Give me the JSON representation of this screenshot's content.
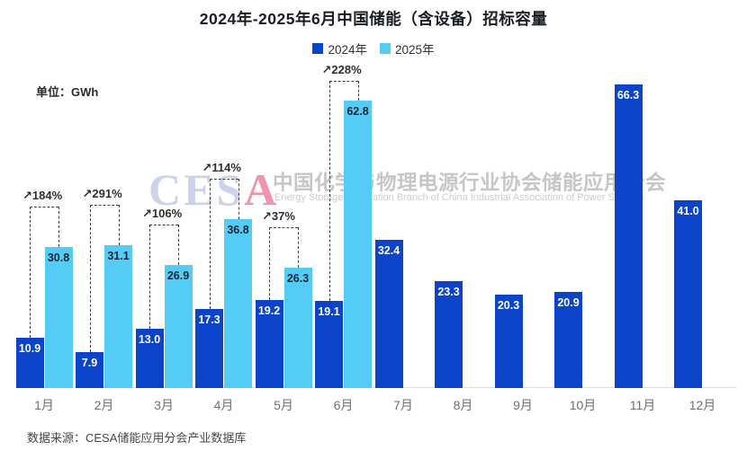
{
  "title": "2024年-2025年6月中国储能（含设备）招标容量",
  "unit_label": "单位：GWh",
  "source_label": "数据来源：CESA储能应用分会产业数据库",
  "legend": [
    {
      "label": "2024年",
      "color": "#0b44c8"
    },
    {
      "label": "2025年",
      "color": "#55ccf5"
    }
  ],
  "watermark": {
    "logo_ces": "CES",
    "logo_a": "A",
    "cn": "中国化学与物理电源行业协会储能应用分会",
    "en": "Energy Storage Application Branch of China Industrial Association of Power Sources"
  },
  "colors": {
    "bar_2024": "#0b44c8",
    "bar_2025": "#55ccf5",
    "value_on_dark": "#ffffff",
    "value_on_light": "#1c2433",
    "bracket": "#3f3f3f"
  },
  "chart_data": {
    "type": "bar",
    "title": "2024年-2025年6月中国储能（含设备）招标容量",
    "ylabel": "GWh",
    "ylim": [
      0,
      70
    ],
    "grid": false,
    "legend_position": "top",
    "categories": [
      "1月",
      "2月",
      "3月",
      "4月",
      "5月",
      "6月",
      "7月",
      "8月",
      "9月",
      "10月",
      "11月",
      "12月"
    ],
    "series": [
      {
        "name": "2024年",
        "values": [
          10.9,
          7.9,
          13.0,
          17.3,
          19.2,
          19.1,
          32.4,
          23.3,
          20.3,
          20.9,
          66.3,
          41.0
        ]
      },
      {
        "name": "2025年",
        "values": [
          30.8,
          31.1,
          26.9,
          36.8,
          26.3,
          62.8,
          null,
          null,
          null,
          null,
          null,
          null
        ]
      }
    ],
    "growth_labels": [
      "↗184%",
      "↗291%",
      "↗106%",
      "↗114%",
      "↗37%",
      "↗228%",
      null,
      null,
      null,
      null,
      null,
      null
    ]
  }
}
